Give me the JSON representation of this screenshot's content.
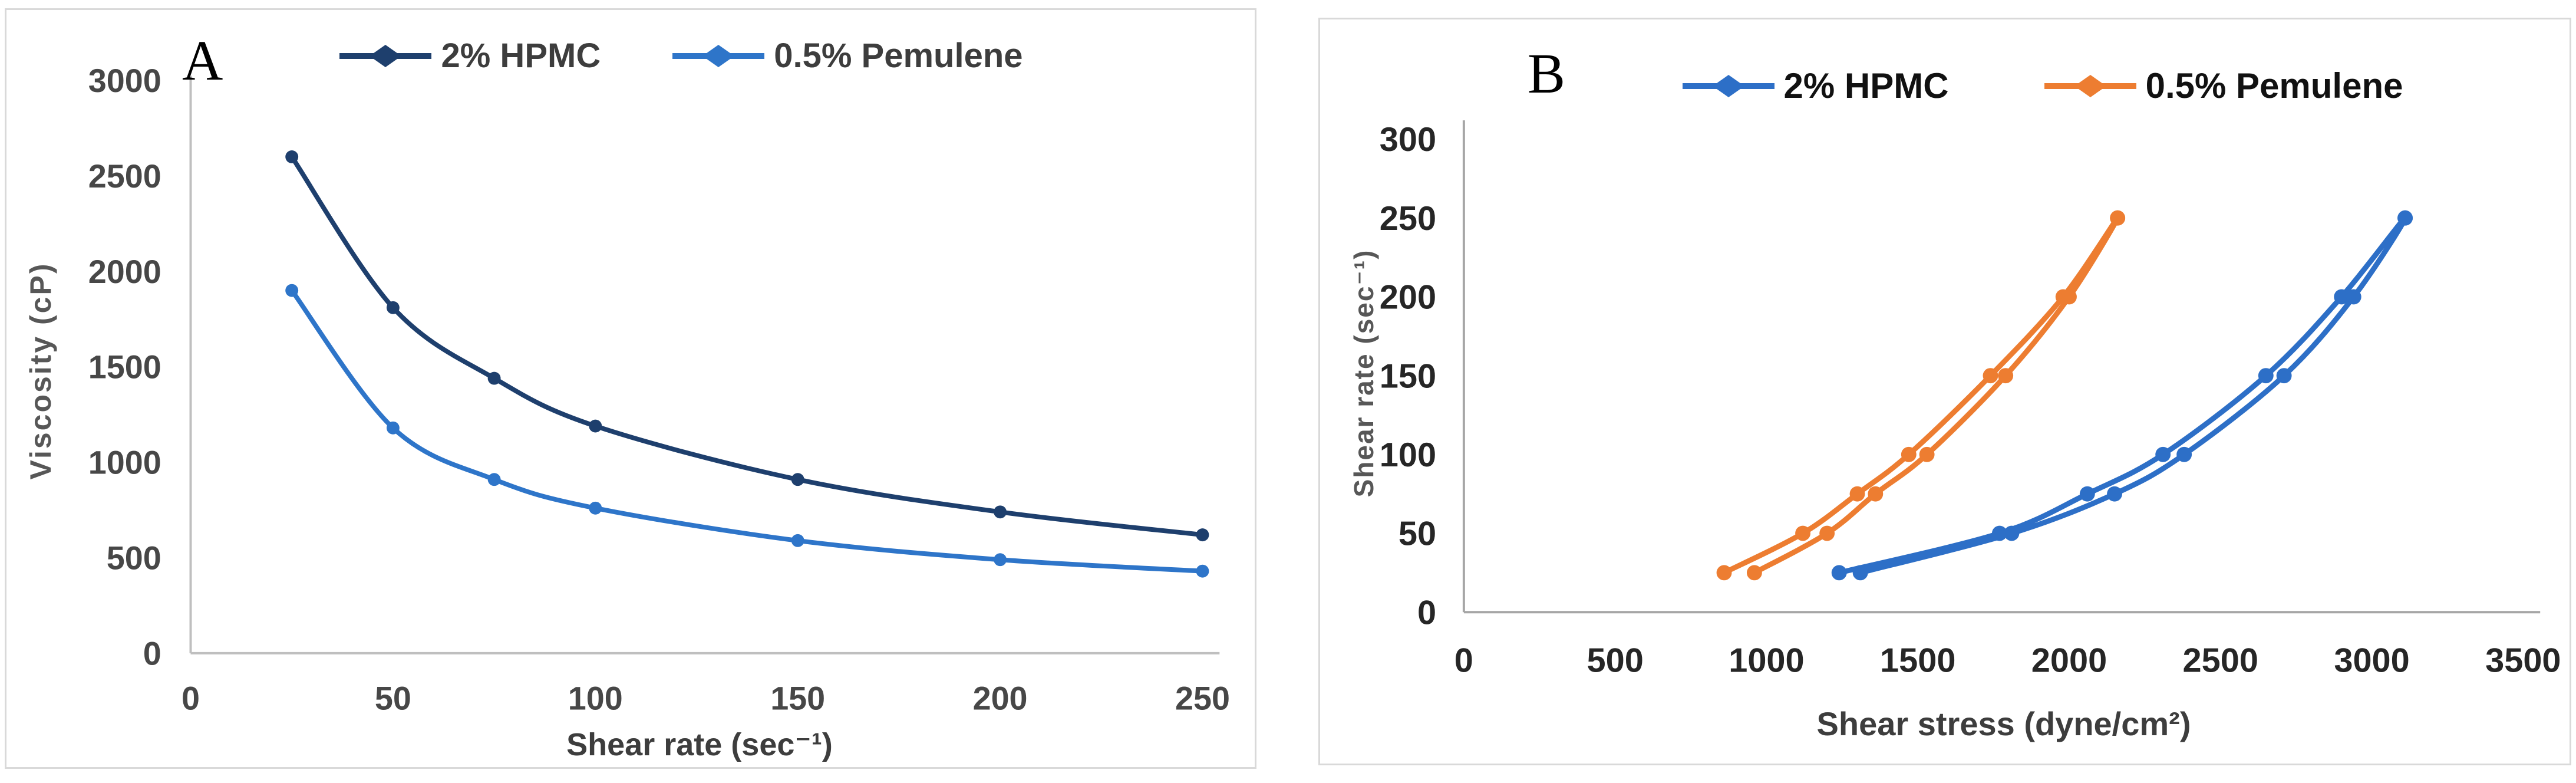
{
  "chart_data": [
    {
      "panel_label": "A",
      "type": "line",
      "legend_position": "top",
      "grid": false,
      "x_axis": {
        "label": "Shear rate (sec⁻¹)",
        "min": 0,
        "max": 250,
        "ticks": [
          0,
          50,
          100,
          150,
          200,
          250
        ]
      },
      "y_axis": {
        "label": "Viscosity (cP)",
        "min": 0,
        "max": 3000,
        "ticks": [
          0,
          500,
          1000,
          1500,
          2000,
          2500,
          3000
        ]
      },
      "series": [
        {
          "name": "2% HPMC",
          "color": "#1e3f6d",
          "x": [
            25,
            50,
            75,
            100,
            150,
            200,
            250
          ],
          "y": [
            2600,
            1810,
            1440,
            1190,
            910,
            740,
            620
          ]
        },
        {
          "name": "0.5% Pemulene",
          "color": "#2e75c9",
          "x": [
            25,
            50,
            75,
            100,
            150,
            200,
            250
          ],
          "y": [
            1900,
            1180,
            910,
            760,
            590,
            490,
            430
          ]
        }
      ]
    },
    {
      "panel_label": "B",
      "type": "line-loop",
      "legend_position": "top",
      "grid": false,
      "x_axis": {
        "label": "Shear stress (dyne/cm²)",
        "min": 0,
        "max": 3500,
        "ticks": [
          0,
          500,
          1000,
          1500,
          2000,
          2500,
          3000,
          3500
        ]
      },
      "y_axis": {
        "label": "Shear rate (sec⁻¹)",
        "min": 0,
        "max": 300,
        "ticks": [
          0,
          50,
          100,
          150,
          200,
          250,
          300
        ]
      },
      "series": [
        {
          "name": "2% HPMC",
          "color": "#2d6fc7",
          "up": [
            [
              1240,
              25
            ],
            [
              1770,
              50
            ],
            [
              2060,
              75
            ],
            [
              2310,
              100
            ],
            [
              2650,
              150
            ],
            [
              2900,
              200
            ],
            [
              3110,
              250
            ]
          ],
          "down": [
            [
              3110,
              250
            ],
            [
              2940,
              200
            ],
            [
              2710,
              150
            ],
            [
              2380,
              100
            ],
            [
              2150,
              75
            ],
            [
              1810,
              50
            ],
            [
              1310,
              25
            ]
          ]
        },
        {
          "name": "0.5% Pemulene",
          "color": "#ed7d31",
          "up": [
            [
              860,
              25
            ],
            [
              1120,
              50
            ],
            [
              1300,
              75
            ],
            [
              1470,
              100
            ],
            [
              1740,
              150
            ],
            [
              1980,
              200
            ],
            [
              2160,
              250
            ]
          ],
          "down": [
            [
              2160,
              250
            ],
            [
              2000,
              200
            ],
            [
              1790,
              150
            ],
            [
              1530,
              100
            ],
            [
              1360,
              75
            ],
            [
              1200,
              50
            ],
            [
              960,
              25
            ]
          ]
        }
      ]
    }
  ]
}
